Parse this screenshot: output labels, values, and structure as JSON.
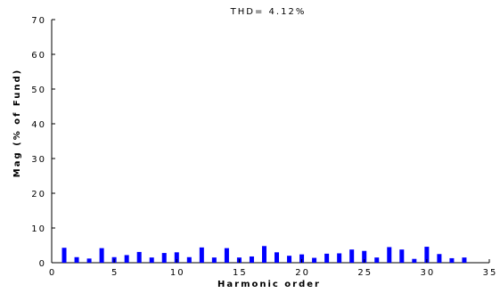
{
  "chart_data": {
    "type": "bar",
    "title": "THD= 4.12%",
    "xlabel": "Harmonic order",
    "ylabel": "Mag (% of Fund)",
    "xlim": [
      0,
      35
    ],
    "ylim": [
      0,
      70
    ],
    "xticks": [
      "0",
      "5",
      "10",
      "15",
      "20",
      "25",
      "30",
      "35"
    ],
    "yticks": [
      "0",
      "10",
      "20",
      "30",
      "40",
      "50",
      "60",
      "70"
    ],
    "grid": false,
    "bar_color": "#0000ff",
    "x": [
      1,
      2,
      3,
      4,
      5,
      6,
      7,
      8,
      9,
      10,
      11,
      12,
      13,
      14,
      15,
      16,
      17,
      18,
      19,
      20,
      21,
      22,
      23,
      24,
      25,
      26,
      27,
      28,
      29,
      30,
      31,
      32,
      33
    ],
    "values": [
      4.3,
      1.6,
      1.2,
      4.2,
      1.6,
      2.2,
      3.1,
      1.5,
      2.8,
      3.0,
      1.6,
      4.4,
      1.5,
      4.2,
      1.5,
      1.8,
      4.8,
      3.0,
      2.0,
      2.4,
      1.4,
      2.6,
      2.7,
      3.8,
      3.4,
      1.5,
      4.5,
      3.8,
      1.1,
      4.6,
      2.5,
      1.3,
      1.5
    ]
  }
}
